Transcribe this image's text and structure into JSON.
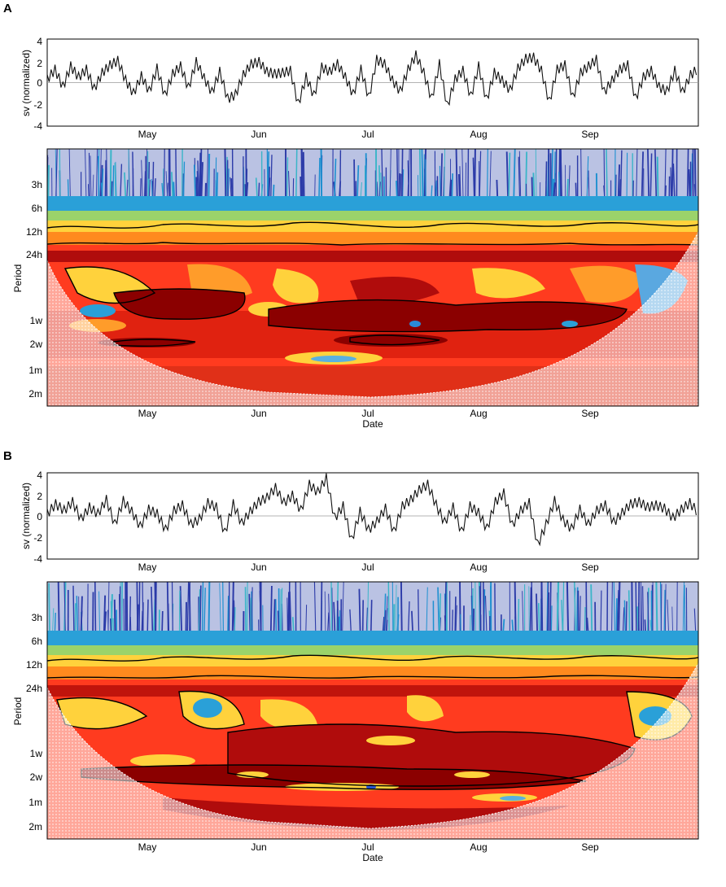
{
  "panels": [
    {
      "letter": "A",
      "ts_ylabel": "sv (normalized)",
      "wt_ylabel": "Period",
      "wt_xlabel": "Date"
    },
    {
      "letter": "B",
      "ts_ylabel": "sv (normalized)",
      "wt_ylabel": "Period",
      "wt_xlabel": "Date"
    }
  ],
  "month_ticks": [
    "May",
    "Jun",
    "Jul",
    "Aug",
    "Sep"
  ],
  "ts_yticks": [
    "4",
    "2",
    "0",
    "-2",
    "-4"
  ],
  "period_ticks": [
    "3h",
    "6h",
    "12h",
    "24h",
    "1w",
    "2w",
    "1m",
    "2m"
  ],
  "colors": {
    "high_power": "#8b0000",
    "mid_power": "#ff3b1f",
    "low_mid": "#ffd23c",
    "low_power": "#3f8fd4",
    "very_low": "#2b2aa0",
    "contour": "#000000"
  },
  "chart_data": [
    {
      "type": "line",
      "title": "",
      "xlabel": "",
      "ylabel": "sv (normalized)",
      "ylim": [
        -4,
        4
      ],
      "x_ticks": [
        "May",
        "Jun",
        "Jul",
        "Aug",
        "Sep"
      ],
      "x_range": [
        "Apr",
        "Sep"
      ],
      "series": [
        {
          "values": [
            0.3,
            1.2,
            -0.4,
            1.5,
            0.5,
            1.2,
            -0.6,
            0.9,
            1.6,
            2.0,
            0.2,
            -1.0,
            0.6,
            -0.8,
            1.3,
            -1.2,
            0.8,
            1.5,
            -0.5,
            1.9,
            0.4,
            -0.9,
            1.0,
            -1.5,
            -1.1,
            0.7,
            1.7,
            1.9,
            1.0,
            0.8,
            0.9,
            1.1,
            -2.0,
            0.5,
            -1.2,
            1.4,
            1.0,
            1.7,
            0.5,
            -1.1,
            1.2,
            -1.4,
            2.1,
            1.7,
            0.2,
            -0.8,
            1.2,
            2.5,
            0.9,
            -1.5,
            1.7,
            -2.2,
            0.3,
            1.1,
            -1.3,
            1.5,
            -1.6,
            0.9,
            0.2,
            -0.7,
            1.3,
            2.2,
            2.3,
            1.1,
            -1.8,
            1.2,
            1.6,
            -1.4,
            0.9,
            1.5,
            2.1,
            -0.9,
            0.2,
            1.2,
            1.6,
            -1.5,
            0.5,
            1.1,
            -0.4,
            -0.8,
            1.1,
            -0.9,
            0.7,
            1.3
          ]
        }
      ]
    },
    {
      "type": "heatmap",
      "title": "",
      "xlabel": "Date",
      "ylabel": "Period",
      "x_ticks": [
        "May",
        "Jun",
        "Jul",
        "Aug",
        "Sep"
      ],
      "y_ticks": [
        "3h",
        "6h",
        "12h",
        "24h",
        "1w",
        "2w",
        "1m",
        "2m"
      ],
      "y_scale": "log"
    },
    {
      "type": "line",
      "title": "",
      "xlabel": "",
      "ylabel": "sv (normalized)",
      "ylim": [
        -4,
        4
      ],
      "x_ticks": [
        "May",
        "Jun",
        "Jul",
        "Aug",
        "Sep"
      ],
      "x_range": [
        "Apr",
        "Sep"
      ],
      "series": [
        {
          "values": [
            0.2,
            1.1,
            0.5,
            1.3,
            -0.3,
            0.8,
            0.2,
            1.5,
            -0.8,
            1.4,
            0.4,
            -1.0,
            0.6,
            0.2,
            -1.3,
            0.5,
            1.0,
            -0.8,
            -0.3,
            1.2,
            0.8,
            -1.6,
            1.1,
            -0.7,
            0.4,
            1.3,
            1.7,
            2.6,
            1.2,
            1.9,
            0.5,
            2.9,
            2.2,
            3.5,
            -0.2,
            0.9,
            -2.3,
            0.4,
            -1.3,
            -0.5,
            0.7,
            -1.5,
            0.9,
            1.5,
            2.4,
            2.9,
            1.0,
            -0.6,
            0.8,
            -1.5,
            0.9,
            0.3,
            -1.2,
            1.3,
            2.1,
            -0.9,
            0.5,
            1.2,
            -2.7,
            -0.8,
            1.4,
            -0.4,
            -1.2,
            0.6,
            -0.8,
            0.5,
            1.0,
            -0.6,
            0.3,
            1.1,
            1.3,
            0.8,
            1.0,
            0.7,
            -0.2,
            0.6,
            1.2,
            0.3
          ]
        }
      ]
    },
    {
      "type": "heatmap",
      "title": "",
      "xlabel": "Date",
      "ylabel": "Period",
      "x_ticks": [
        "May",
        "Jun",
        "Jul",
        "Aug",
        "Sep"
      ],
      "y_ticks": [
        "3h",
        "6h",
        "12h",
        "24h",
        "1w",
        "2w",
        "1m",
        "2m"
      ],
      "y_scale": "log"
    }
  ]
}
